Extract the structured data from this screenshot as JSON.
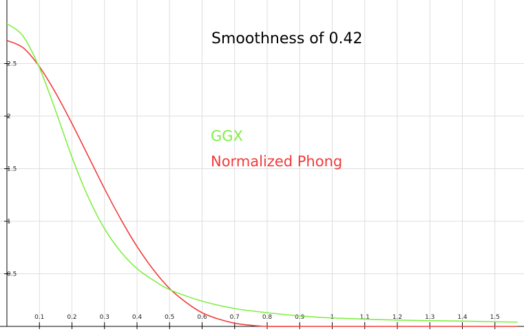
{
  "chart_data": {
    "type": "line",
    "title": "Smoothness of 0.42",
    "xlabel": "",
    "ylabel": "",
    "xlim": [
      0,
      1.57
    ],
    "ylim": [
      0,
      2.95
    ],
    "grid": true,
    "legend_position": "center",
    "x_ticks": [
      "0.1",
      "0.2",
      "0.3",
      "0.4",
      "0.5",
      "0.6",
      "0.7",
      "0.8",
      "0.9",
      "1",
      "1.1",
      "1.2",
      "1.3",
      "1.4",
      "1.5"
    ],
    "y_ticks": [
      "0.5",
      "1",
      "1.5",
      "2",
      "2.5"
    ],
    "series": [
      {
        "name": "GGX",
        "color": "#7fef40",
        "x": [
          0.0,
          0.05,
          0.1,
          0.15,
          0.2,
          0.25,
          0.3,
          0.35,
          0.4,
          0.45,
          0.5,
          0.6,
          0.7,
          0.8,
          0.9,
          1.0,
          1.2,
          1.4,
          1.57
        ],
        "y": [
          2.88,
          2.76,
          2.46,
          2.05,
          1.61,
          1.23,
          0.93,
          0.71,
          0.55,
          0.44,
          0.35,
          0.24,
          0.17,
          0.13,
          0.1,
          0.08,
          0.06,
          0.05,
          0.04
        ]
      },
      {
        "name": "Normalized Phong",
        "color": "#f23a3a",
        "x": [
          0.0,
          0.05,
          0.1,
          0.15,
          0.2,
          0.25,
          0.3,
          0.35,
          0.4,
          0.45,
          0.5,
          0.55,
          0.6,
          0.65,
          0.7,
          0.75,
          0.8,
          0.9,
          1.0,
          1.57
        ],
        "y": [
          2.72,
          2.65,
          2.47,
          2.22,
          1.93,
          1.62,
          1.31,
          1.02,
          0.76,
          0.54,
          0.36,
          0.23,
          0.13,
          0.07,
          0.03,
          0.01,
          0.0,
          0.0,
          0.0,
          0.0
        ]
      }
    ]
  }
}
